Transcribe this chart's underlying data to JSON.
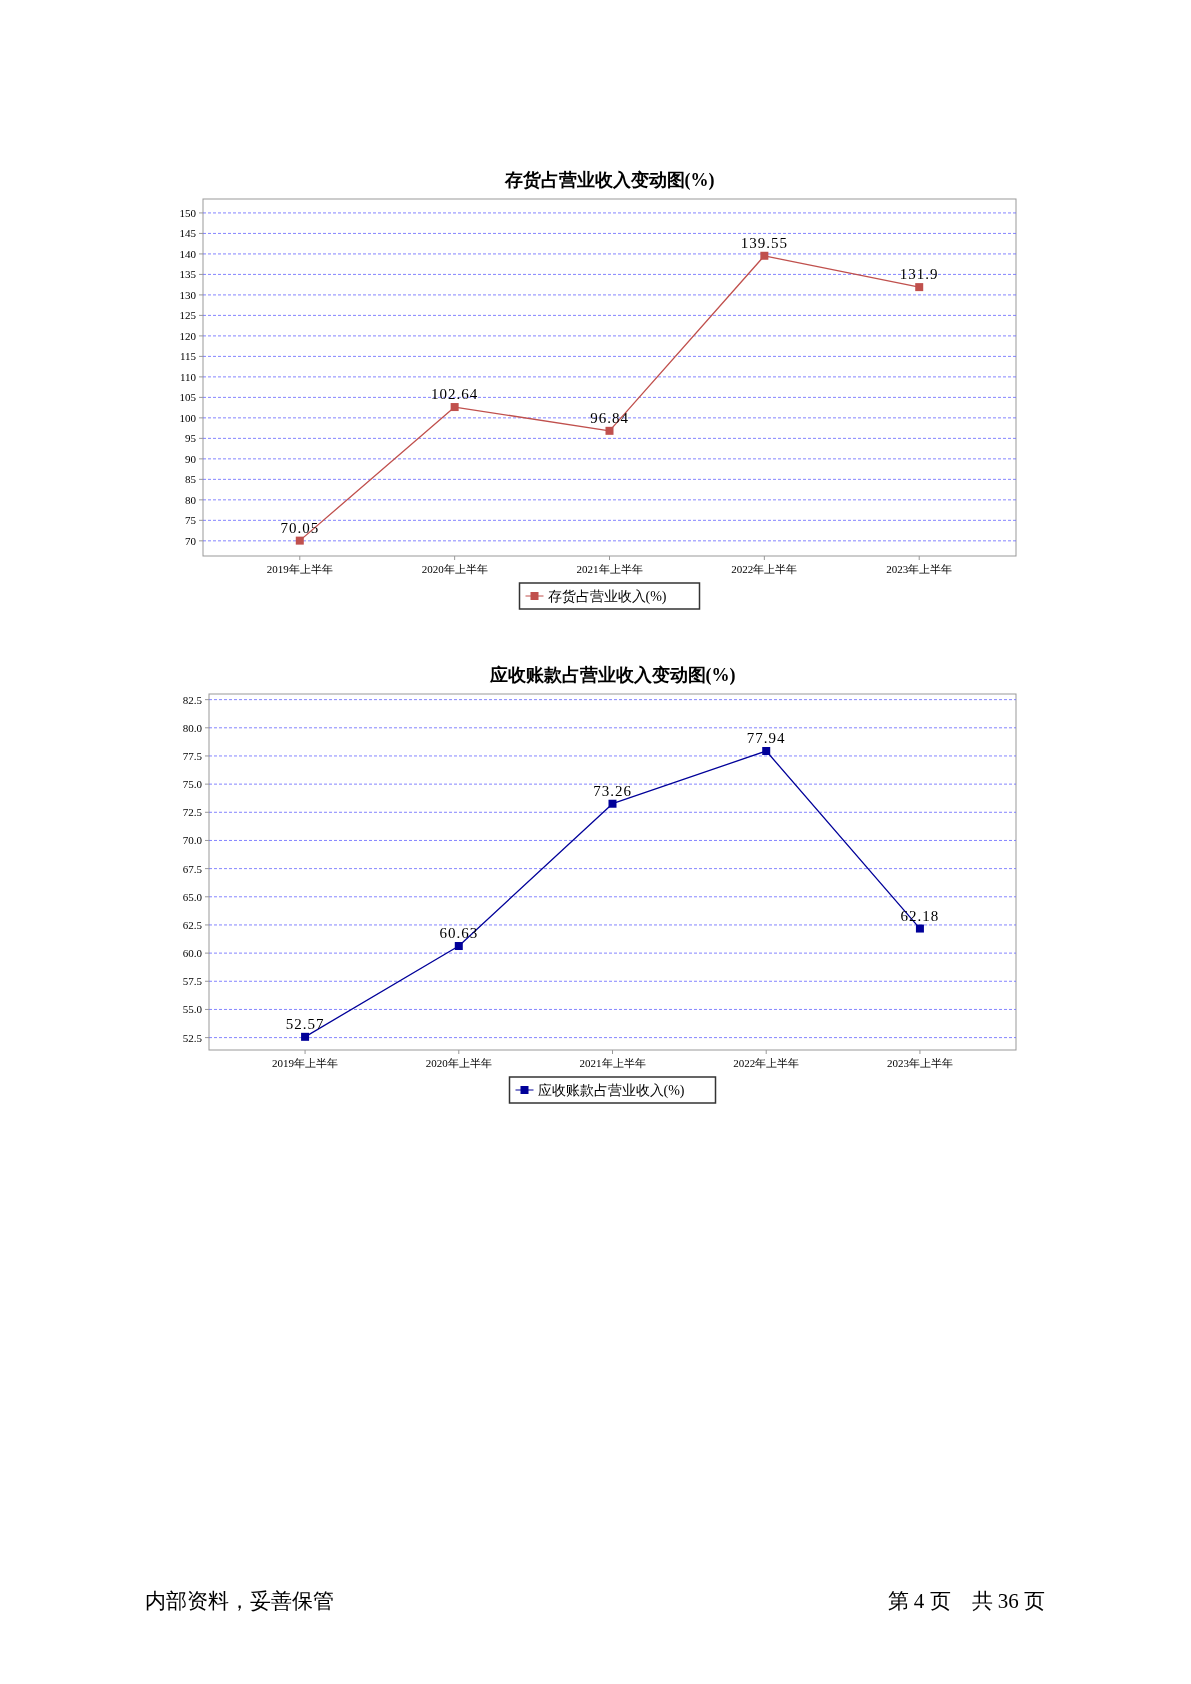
{
  "chart_data": [
    {
      "type": "line",
      "title": "存货占营业收入变动图(%)",
      "categories": [
        "2019年上半年",
        "2020年上半年",
        "2021年上半年",
        "2022年上半年",
        "2023年上半年"
      ],
      "series": [
        {
          "name": "存货占营业收入(%)",
          "color": "#c0504d",
          "values": [
            70.05,
            102.64,
            96.84,
            139.55,
            131.9
          ]
        }
      ],
      "ylim": [
        66.3,
        153.4
      ],
      "yticks": [
        70,
        75,
        80,
        85,
        90,
        95,
        100,
        105,
        110,
        115,
        120,
        125,
        130,
        135,
        140,
        145,
        150
      ],
      "grid": "y",
      "legend": "bottom",
      "marker": "square",
      "data_labels": true
    },
    {
      "type": "line",
      "title": "应收账款占营业收入变动图(%)",
      "categories": [
        "2019年上半年",
        "2020年上半年",
        "2021年上半年",
        "2022年上半年",
        "2023年上半年"
      ],
      "series": [
        {
          "name": "应收账款占营业收入(%)",
          "color": "#000099",
          "values": [
            52.57,
            60.63,
            73.26,
            77.94,
            62.18
          ]
        }
      ],
      "ylim": [
        51.4,
        83
      ],
      "yticks": [
        {
          "value": 52.5,
          "label": "52.5"
        },
        {
          "value": 55,
          "label": "55.0"
        },
        {
          "value": 57.5,
          "label": "57.5"
        },
        {
          "value": 60,
          "label": "60.0"
        },
        {
          "value": 62.5,
          "label": "62.5"
        },
        {
          "value": 65,
          "label": "65.0"
        },
        {
          "value": 67.5,
          "label": "67.5"
        },
        {
          "value": 70,
          "label": "70.0"
        },
        {
          "value": 72.5,
          "label": "72.5"
        },
        {
          "value": 75,
          "label": "75.0"
        },
        {
          "value": 77.5,
          "label": "77.5"
        },
        {
          "value": 80,
          "label": "80.0"
        },
        {
          "value": 82.5,
          "label": "82.5"
        }
      ],
      "grid": "y",
      "legend": "bottom",
      "marker": "square",
      "data_labels": true,
      "annotations": [
        "内部资料，妥善保管",
        "第 4 页　共 36 页"
      ]
    }
  ]
}
